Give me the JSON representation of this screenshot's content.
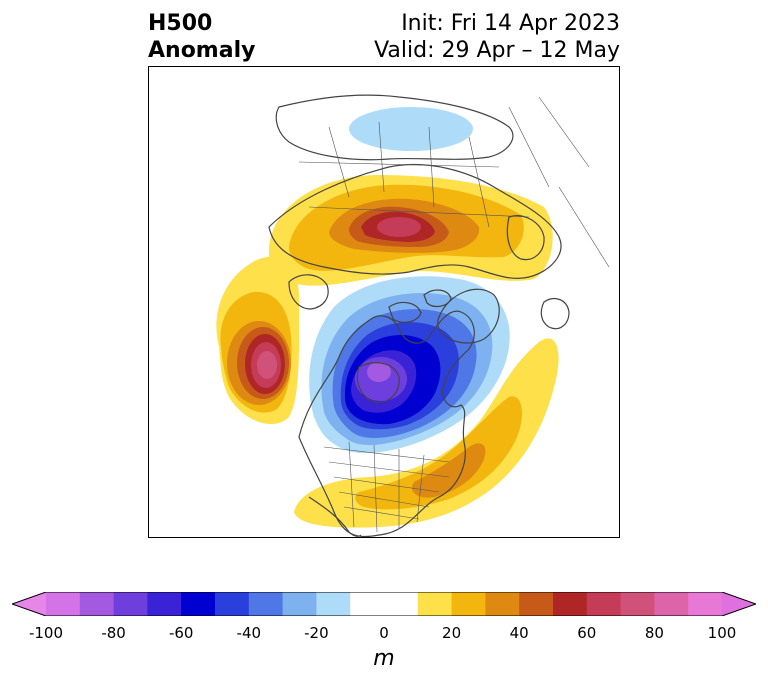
{
  "header": {
    "field_line1": "H500",
    "field_line2": "Anomaly",
    "init_text": "Init: Fri 14 Apr 2023",
    "valid_text": "Valid: 29 Apr – 12 May"
  },
  "map": {
    "projection": "north-polar stereographic",
    "anomalies": [
      {
        "name": "trough-canada",
        "sign": "negative",
        "peak_m": -90
      },
      {
        "name": "ridge-northeast-pacific",
        "sign": "positive",
        "peak_m": 80
      },
      {
        "name": "ridge-arctic",
        "sign": "positive",
        "peak_m": 70
      },
      {
        "name": "ridge-eastern-us-atlantic",
        "sign": "positive",
        "peak_m": 40
      },
      {
        "name": "weak-low-siberia",
        "sign": "negative",
        "peak_m": -20
      }
    ]
  },
  "colorbar": {
    "unit": "m",
    "bounds": [
      -100,
      -90,
      -80,
      -70,
      -60,
      -50,
      -40,
      -30,
      -20,
      -10,
      10,
      20,
      30,
      40,
      50,
      60,
      70,
      80,
      90,
      100
    ],
    "colors": [
      "#d472e8",
      "#a35ae0",
      "#6e3fdc",
      "#3a22d6",
      "#0000d0",
      "#2a3fdc",
      "#4f78e6",
      "#7db1f0",
      "#aedcf8",
      "#ffffff",
      "#fde04a",
      "#f2b60e",
      "#de8a12",
      "#c65a18",
      "#b02626",
      "#c43c58",
      "#d0527a",
      "#dc64a8",
      "#e878d6"
    ],
    "under_color": "#e586e8",
    "over_color": "#e070e0",
    "tick_labels": [
      "-100",
      "-80",
      "-60",
      "-40",
      "-20",
      "0",
      "20",
      "40",
      "60",
      "80",
      "100"
    ]
  }
}
